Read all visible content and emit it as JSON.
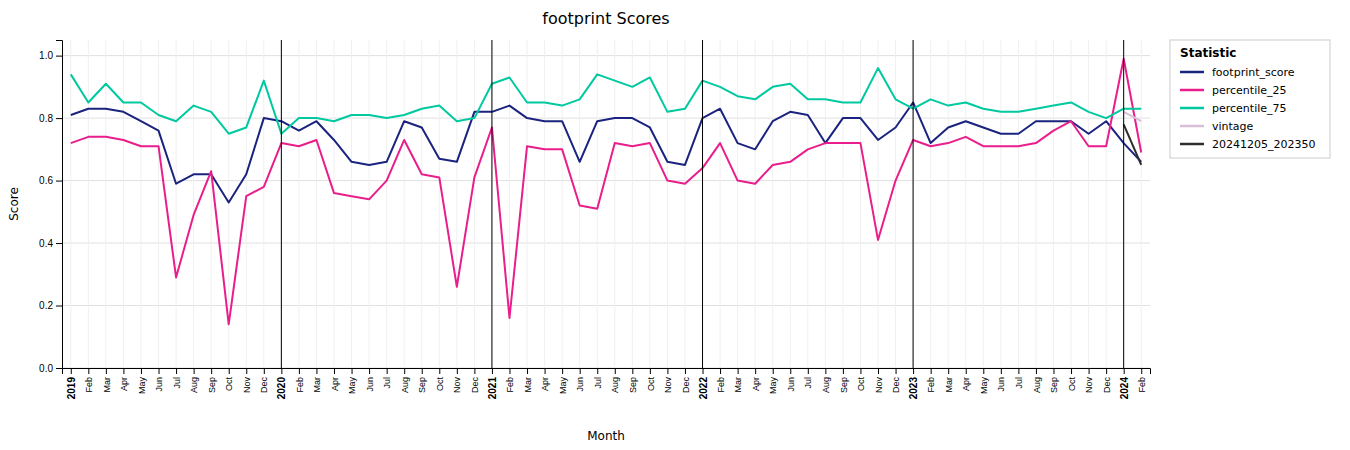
{
  "chart_data": {
    "type": "line",
    "title": "footprint Scores",
    "x_label": "Month",
    "y_label": "Score",
    "categories": [
      "2019",
      "Feb",
      "Mar",
      "Apr",
      "May",
      "Jun",
      "Jul",
      "Aug",
      "Sep",
      "Oct",
      "Nov",
      "Dec",
      "2020",
      "Feb",
      "Mar",
      "Apr",
      "May",
      "Jun",
      "Jul",
      "Aug",
      "Sep",
      "Oct",
      "Nov",
      "Dec",
      "2021",
      "Feb",
      "Mar",
      "Apr",
      "May",
      "Jun",
      "Jul",
      "Aug",
      "Sep",
      "Oct",
      "Nov",
      "Dec",
      "2022",
      "Feb",
      "Mar",
      "Apr",
      "May",
      "Jun",
      "Jul",
      "Aug",
      "Sep",
      "Oct",
      "Nov",
      "Dec",
      "2023",
      "Feb",
      "Mar",
      "Apr",
      "May",
      "Jun",
      "Jul",
      "Aug",
      "Sep",
      "Oct",
      "Nov",
      "Dec",
      "2024",
      "Feb"
    ],
    "series": [
      {
        "name": "footprint_score",
        "color": "#1a237e",
        "values": [
          0.81,
          0.83,
          0.83,
          0.82,
          0.79,
          0.76,
          0.59,
          0.62,
          0.62,
          0.53,
          0.62,
          0.8,
          0.79,
          0.76,
          0.79,
          0.73,
          0.66,
          0.65,
          0.66,
          0.79,
          0.77,
          0.67,
          0.66,
          0.82,
          0.82,
          0.84,
          0.8,
          0.79,
          0.79,
          0.66,
          0.79,
          0.8,
          0.8,
          0.77,
          0.66,
          0.65,
          0.8,
          0.83,
          0.72,
          0.7,
          0.79,
          0.82,
          0.81,
          0.72,
          0.8,
          0.8,
          0.73,
          0.77,
          0.85,
          0.72,
          0.77,
          0.79,
          0.77,
          0.75,
          0.75,
          0.79,
          0.79,
          0.79,
          0.75,
          0.79,
          0.72,
          0.66
        ]
      },
      {
        "name": "percentile_25",
        "color": "#e91e8c",
        "values": [
          0.72,
          0.74,
          0.74,
          0.73,
          0.71,
          0.71,
          0.29,
          0.49,
          0.63,
          0.14,
          0.55,
          0.58,
          0.72,
          0.71,
          0.73,
          0.56,
          0.55,
          0.54,
          0.6,
          0.73,
          0.62,
          0.61,
          0.26,
          0.61,
          0.77,
          0.16,
          0.71,
          0.7,
          0.7,
          0.52,
          0.51,
          0.72,
          0.71,
          0.72,
          0.6,
          0.59,
          0.64,
          0.72,
          0.6,
          0.59,
          0.65,
          0.66,
          0.7,
          0.72,
          0.72,
          0.72,
          0.41,
          0.6,
          0.73,
          0.71,
          0.72,
          0.74,
          0.71,
          0.71,
          0.71,
          0.72,
          0.76,
          0.79,
          0.71,
          0.71,
          0.99,
          0.69
        ]
      },
      {
        "name": "percentile_75",
        "color": "#00c9a0",
        "values": [
          0.94,
          0.85,
          0.91,
          0.85,
          0.85,
          0.81,
          0.79,
          0.84,
          0.82,
          0.75,
          0.77,
          0.92,
          0.75,
          0.8,
          0.8,
          0.79,
          0.81,
          0.81,
          0.8,
          0.81,
          0.83,
          0.84,
          0.79,
          0.8,
          0.91,
          0.93,
          0.85,
          0.85,
          0.84,
          0.86,
          0.94,
          0.92,
          0.9,
          0.93,
          0.82,
          0.83,
          0.92,
          0.9,
          0.87,
          0.86,
          0.9,
          0.91,
          0.86,
          0.86,
          0.85,
          0.85,
          0.96,
          0.86,
          0.83,
          0.86,
          0.84,
          0.85,
          0.83,
          0.82,
          0.82,
          0.83,
          0.84,
          0.85,
          0.82,
          0.8,
          0.83,
          0.83
        ]
      },
      {
        "name": "vintage",
        "color": "#d8bfd8",
        "values": [
          null,
          null,
          null,
          null,
          null,
          null,
          null,
          null,
          null,
          null,
          null,
          null,
          null,
          null,
          null,
          null,
          null,
          null,
          null,
          null,
          null,
          null,
          null,
          null,
          null,
          null,
          null,
          null,
          null,
          null,
          null,
          null,
          null,
          null,
          null,
          null,
          null,
          null,
          null,
          null,
          null,
          null,
          null,
          null,
          null,
          null,
          null,
          null,
          null,
          null,
          null,
          null,
          null,
          null,
          null,
          null,
          null,
          null,
          null,
          null,
          0.82,
          0.79
        ]
      },
      {
        "name": "20241205_202350",
        "color": "#2d2d2d",
        "values": [
          null,
          null,
          null,
          null,
          null,
          null,
          null,
          null,
          null,
          null,
          null,
          null,
          null,
          null,
          null,
          null,
          null,
          null,
          null,
          null,
          null,
          null,
          null,
          null,
          null,
          null,
          null,
          null,
          null,
          null,
          null,
          null,
          null,
          null,
          null,
          null,
          null,
          null,
          null,
          null,
          null,
          null,
          null,
          null,
          null,
          null,
          null,
          null,
          null,
          null,
          null,
          null,
          null,
          null,
          null,
          null,
          null,
          null,
          null,
          null,
          0.78,
          0.65
        ]
      }
    ],
    "vlines": [
      "2020",
      "2021",
      "2022",
      "2023",
      "2024"
    ],
    "ylim": [
      0.0,
      1.05
    ],
    "yticks": [
      {
        "value": 0.0,
        "label": "0.0"
      },
      0.2,
      0.4,
      0.6,
      0.8,
      {
        "value": 1.0,
        "label": "1.0"
      }
    ],
    "grid": true,
    "legend": "upper right",
    "legend_title": "Statistic"
  }
}
